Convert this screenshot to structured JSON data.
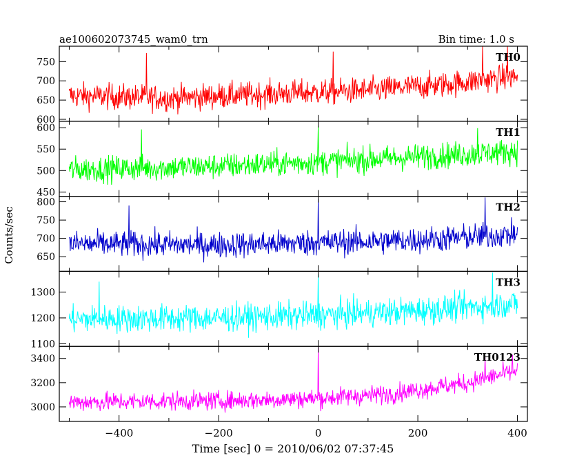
{
  "header": {
    "title": "ae100602073745_wam0_trn",
    "bin_time": "Bin time: 1.0 s"
  },
  "chart_data": {
    "type": "line",
    "ylabel": "Counts/sec",
    "xlabel": "Time [sec] 0 = 2010/06/02 07:37:45",
    "xlim": [
      -520,
      420
    ],
    "x_ticks": [
      -400,
      -200,
      0,
      200,
      400
    ],
    "x_tick_labels": [
      "−400",
      "−200",
      "0",
      "200",
      "400"
    ],
    "x_range": [
      -500,
      400
    ],
    "grid": false,
    "panels": [
      {
        "name": "TH0",
        "color": "#ff0000",
        "ylim": [
          595,
          790
        ],
        "y_ticks": [
          600,
          650,
          700,
          750
        ],
        "y_tick_labels": [
          "600",
          "650",
          "700",
          "750"
        ],
        "trend": [
          [
            -500,
            662
          ],
          [
            -300,
            655
          ],
          [
            -100,
            666
          ],
          [
            100,
            675
          ],
          [
            250,
            690
          ],
          [
            400,
            712
          ]
        ],
        "noise": 30,
        "spikes": [
          [
            -345,
            772
          ],
          [
            30,
            776
          ],
          [
            330,
            790
          ],
          [
            380,
            790
          ]
        ]
      },
      {
        "name": "TH1",
        "color": "#00ff00",
        "ylim": [
          440,
          615
        ],
        "y_ticks": [
          450,
          500,
          550,
          600
        ],
        "y_tick_labels": [
          "450",
          "500",
          "550",
          "600"
        ],
        "trend": [
          [
            -500,
            502
          ],
          [
            -200,
            510
          ],
          [
            0,
            520
          ],
          [
            200,
            532
          ],
          [
            400,
            545
          ]
        ],
        "noise": 27,
        "spikes": [
          [
            0,
            604
          ],
          [
            -355,
            596
          ],
          [
            320,
            599
          ]
        ]
      },
      {
        "name": "TH2",
        "color": "#0000cc",
        "ylim": [
          610,
          815
        ],
        "y_ticks": [
          650,
          700,
          750,
          800
        ],
        "y_tick_labels": [
          "650",
          "700",
          "750",
          "800"
        ],
        "trend": [
          [
            -500,
            685
          ],
          [
            -200,
            682
          ],
          [
            0,
            688
          ],
          [
            200,
            695
          ],
          [
            400,
            712
          ]
        ],
        "noise": 32,
        "spikes": [
          [
            0,
            808
          ],
          [
            335,
            812
          ],
          [
            -380,
            790
          ]
        ]
      },
      {
        "name": "TH3",
        "color": "#00ffff",
        "ylim": [
          1090,
          1380
        ],
        "y_ticks": [
          1100,
          1200,
          1300
        ],
        "y_tick_labels": [
          "1100",
          "1200",
          "1300"
        ],
        "trend": [
          [
            -500,
            1195
          ],
          [
            -200,
            1200
          ],
          [
            0,
            1210
          ],
          [
            200,
            1228
          ],
          [
            400,
            1255
          ]
        ],
        "noise": 48,
        "spikes": [
          [
            0,
            1370
          ],
          [
            350,
            1375
          ],
          [
            -440,
            1340
          ]
        ]
      },
      {
        "name": "TH0123",
        "color": "#ff00ff",
        "ylim": [
          2880,
          3500
        ],
        "y_ticks": [
          3000,
          3200,
          3400
        ],
        "y_tick_labels": [
          "3000",
          "3200",
          "3400"
        ],
        "trend": [
          [
            -500,
            3040
          ],
          [
            -200,
            3050
          ],
          [
            0,
            3070
          ],
          [
            150,
            3110
          ],
          [
            300,
            3200
          ],
          [
            400,
            3300
          ]
        ],
        "noise": 70,
        "spikes": [
          [
            0,
            3495
          ],
          [
            335,
            3410
          ],
          [
            390,
            3430
          ]
        ]
      }
    ]
  }
}
